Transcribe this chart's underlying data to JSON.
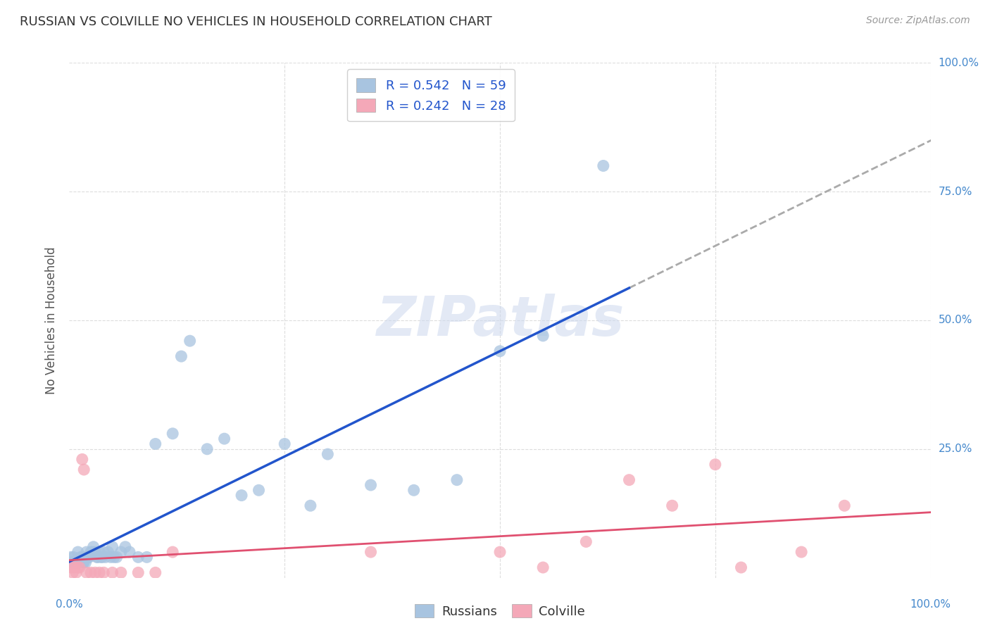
{
  "title": "RUSSIAN VS COLVILLE NO VEHICLES IN HOUSEHOLD CORRELATION CHART",
  "source": "Source: ZipAtlas.com",
  "ylabel": "No Vehicles in Household",
  "watermark": "ZIPatlas",
  "russian_R": 0.542,
  "russian_N": 59,
  "colville_R": 0.242,
  "colville_N": 28,
  "russian_color": "#a8c4e0",
  "colville_color": "#f4a8b8",
  "russian_line_color": "#2255cc",
  "colville_line_color": "#e05070",
  "trend_line_color": "#aaaaaa",
  "background_color": "#ffffff",
  "grid_color": "#dddddd",
  "xlim": [
    0.0,
    1.0
  ],
  "ylim": [
    0.0,
    1.0
  ],
  "russian_x": [
    0.002,
    0.003,
    0.004,
    0.005,
    0.006,
    0.007,
    0.008,
    0.009,
    0.01,
    0.011,
    0.012,
    0.013,
    0.015,
    0.016,
    0.017,
    0.018,
    0.019,
    0.02,
    0.021,
    0.022,
    0.023,
    0.025,
    0.027,
    0.028,
    0.03,
    0.032,
    0.033,
    0.035,
    0.037,
    0.038,
    0.04,
    0.042,
    0.045,
    0.048,
    0.05,
    0.052,
    0.055,
    0.06,
    0.065,
    0.07,
    0.08,
    0.09,
    0.1,
    0.12,
    0.13,
    0.14,
    0.16,
    0.18,
    0.2,
    0.22,
    0.25,
    0.28,
    0.3,
    0.35,
    0.4,
    0.45,
    0.5,
    0.55,
    0.62
  ],
  "russian_y": [
    0.04,
    0.03,
    0.03,
    0.04,
    0.03,
    0.03,
    0.03,
    0.03,
    0.05,
    0.03,
    0.03,
    0.04,
    0.04,
    0.03,
    0.03,
    0.04,
    0.03,
    0.05,
    0.04,
    0.04,
    0.04,
    0.05,
    0.05,
    0.06,
    0.05,
    0.04,
    0.04,
    0.05,
    0.04,
    0.04,
    0.05,
    0.04,
    0.05,
    0.04,
    0.06,
    0.04,
    0.04,
    0.05,
    0.06,
    0.05,
    0.04,
    0.04,
    0.26,
    0.28,
    0.43,
    0.46,
    0.25,
    0.27,
    0.16,
    0.17,
    0.26,
    0.14,
    0.24,
    0.18,
    0.17,
    0.19,
    0.44,
    0.47,
    0.8
  ],
  "colville_x": [
    0.002,
    0.004,
    0.006,
    0.008,
    0.01,
    0.012,
    0.015,
    0.017,
    0.02,
    0.025,
    0.03,
    0.035,
    0.04,
    0.05,
    0.06,
    0.08,
    0.1,
    0.12,
    0.35,
    0.5,
    0.55,
    0.6,
    0.65,
    0.7,
    0.75,
    0.78,
    0.85,
    0.9
  ],
  "colville_y": [
    0.02,
    0.01,
    0.02,
    0.01,
    0.02,
    0.02,
    0.23,
    0.21,
    0.01,
    0.01,
    0.01,
    0.01,
    0.01,
    0.01,
    0.01,
    0.01,
    0.01,
    0.05,
    0.05,
    0.05,
    0.02,
    0.07,
    0.19,
    0.14,
    0.22,
    0.02,
    0.05,
    0.14
  ]
}
